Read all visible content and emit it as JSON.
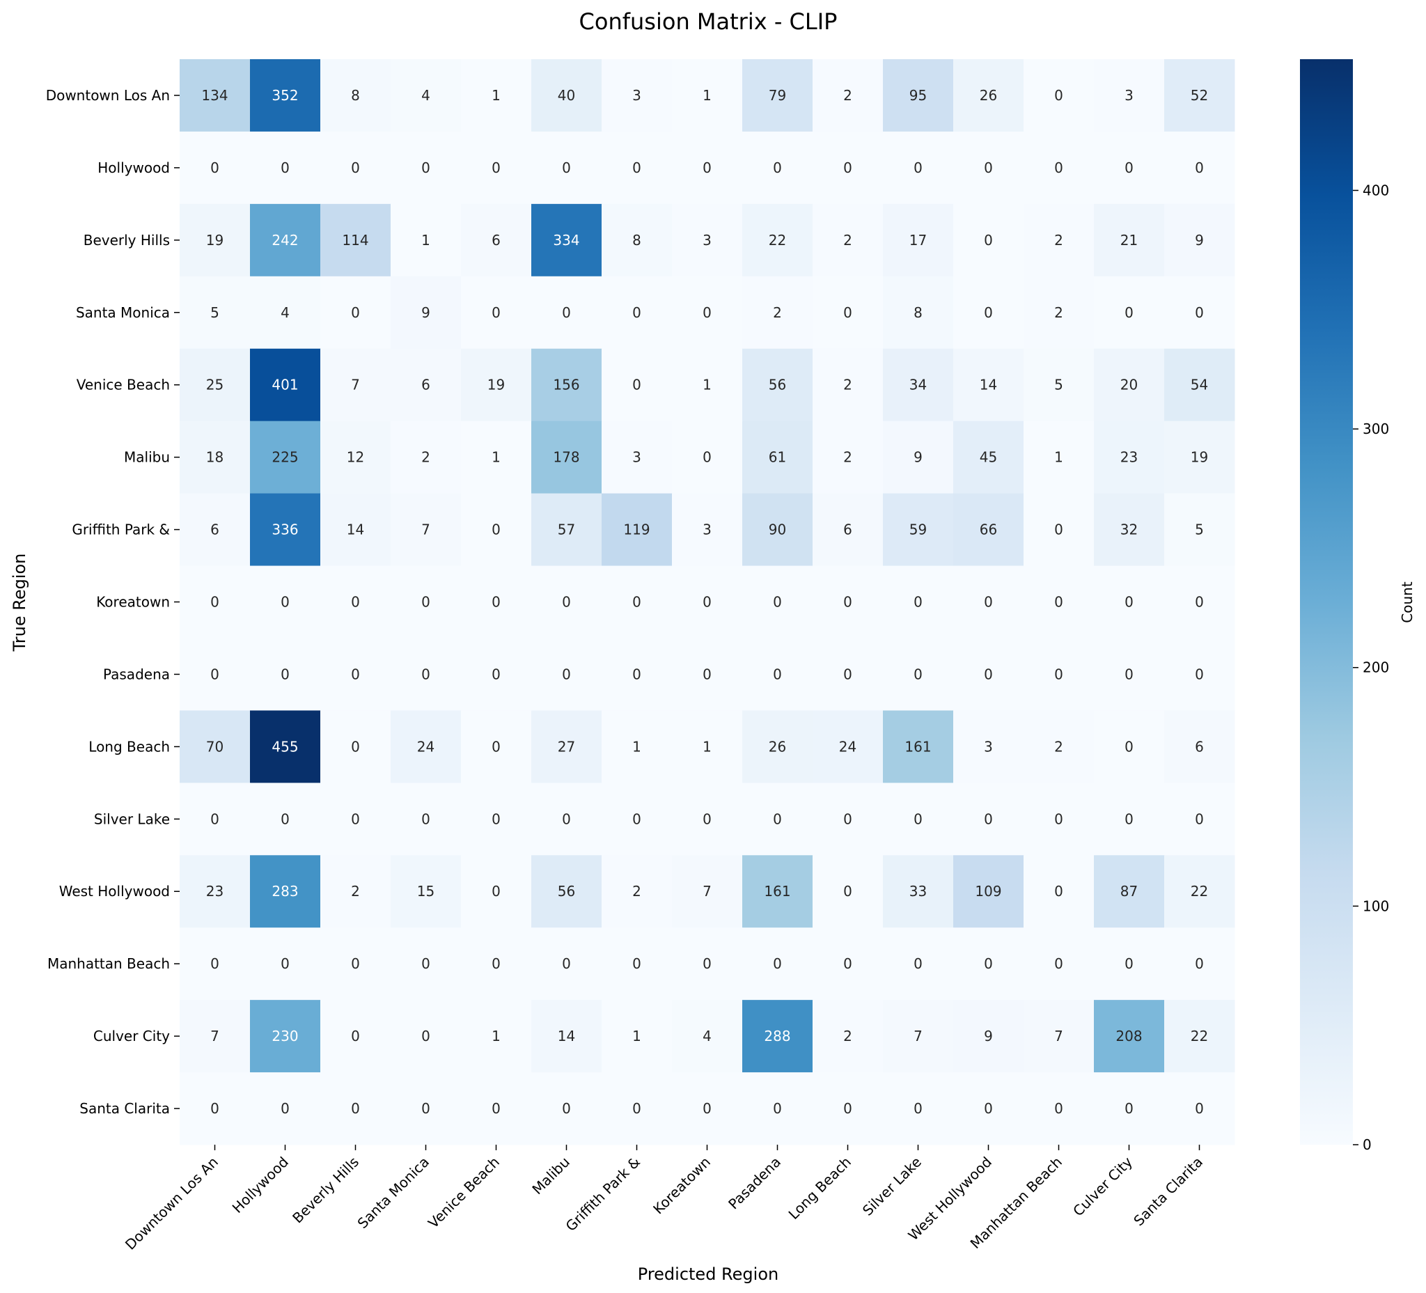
{
  "chart_data": {
    "type": "heatmap",
    "title": "Confusion Matrix - CLIP",
    "xlabel": "Predicted Region",
    "ylabel": "True Region",
    "x_categories": [
      "Downtown Los An",
      "Hollywood",
      "Beverly Hills",
      "Santa Monica",
      "Venice Beach",
      "Malibu",
      "Griffith Park &",
      "Koreatown",
      "Pasadena",
      "Long Beach",
      "Silver Lake",
      "West Hollywood",
      "Manhattan Beach",
      "Culver City",
      "Santa Clarita"
    ],
    "y_categories": [
      "Downtown Los An",
      "Hollywood",
      "Beverly Hills",
      "Santa Monica",
      "Venice Beach",
      "Malibu",
      "Griffith Park &",
      "Koreatown",
      "Pasadena",
      "Long Beach",
      "Silver Lake",
      "West Hollywood",
      "Manhattan Beach",
      "Culver City",
      "Santa Clarita"
    ],
    "values": [
      [
        134,
        352,
        8,
        4,
        1,
        40,
        3,
        1,
        79,
        2,
        95,
        26,
        0,
        3,
        52
      ],
      [
        0,
        0,
        0,
        0,
        0,
        0,
        0,
        0,
        0,
        0,
        0,
        0,
        0,
        0,
        0
      ],
      [
        19,
        242,
        114,
        1,
        6,
        334,
        8,
        3,
        22,
        2,
        17,
        0,
        2,
        21,
        9
      ],
      [
        5,
        4,
        0,
        9,
        0,
        0,
        0,
        0,
        2,
        0,
        8,
        0,
        2,
        0,
        0
      ],
      [
        25,
        401,
        7,
        6,
        19,
        156,
        0,
        1,
        56,
        2,
        34,
        14,
        5,
        20,
        54
      ],
      [
        18,
        225,
        12,
        2,
        1,
        178,
        3,
        0,
        61,
        2,
        9,
        45,
        1,
        23,
        19
      ],
      [
        6,
        336,
        14,
        7,
        0,
        57,
        119,
        3,
        90,
        6,
        59,
        66,
        0,
        32,
        5
      ],
      [
        0,
        0,
        0,
        0,
        0,
        0,
        0,
        0,
        0,
        0,
        0,
        0,
        0,
        0,
        0
      ],
      [
        0,
        0,
        0,
        0,
        0,
        0,
        0,
        0,
        0,
        0,
        0,
        0,
        0,
        0,
        0
      ],
      [
        70,
        455,
        0,
        24,
        0,
        27,
        1,
        1,
        26,
        24,
        161,
        3,
        2,
        0,
        6
      ],
      [
        0,
        0,
        0,
        0,
        0,
        0,
        0,
        0,
        0,
        0,
        0,
        0,
        0,
        0,
        0
      ],
      [
        23,
        283,
        2,
        15,
        0,
        56,
        2,
        7,
        161,
        0,
        33,
        109,
        0,
        87,
        22
      ],
      [
        0,
        0,
        0,
        0,
        0,
        0,
        0,
        0,
        0,
        0,
        0,
        0,
        0,
        0,
        0
      ],
      [
        7,
        230,
        0,
        0,
        1,
        14,
        1,
        4,
        288,
        2,
        7,
        9,
        7,
        208,
        22
      ],
      [
        0,
        0,
        0,
        0,
        0,
        0,
        0,
        0,
        0,
        0,
        0,
        0,
        0,
        0,
        0
      ]
    ],
    "colormap": "Blues",
    "vmin": 0,
    "vmax": 455,
    "colorbar": {
      "label": "Count",
      "ticks": [
        0,
        100,
        200,
        300,
        400
      ],
      "placement": "right"
    },
    "grid": false
  }
}
